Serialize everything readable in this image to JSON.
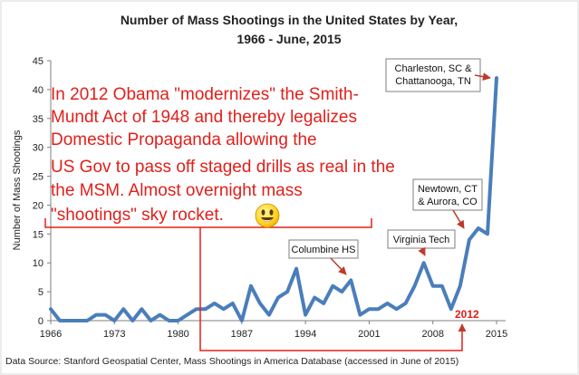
{
  "chart_data": {
    "type": "line",
    "title": [
      "Number of Mass Shootings in the United States by Year,",
      "1966 - June, 2015"
    ],
    "xlabel": "",
    "ylabel": "Number of Mass Shootings",
    "ylim": [
      0,
      45
    ],
    "xlim": [
      1966,
      2015
    ],
    "yticks": [
      0,
      5,
      10,
      15,
      20,
      25,
      30,
      35,
      40,
      45
    ],
    "xticks": [
      1966,
      1973,
      1980,
      1987,
      1994,
      2001,
      2008,
      2015
    ],
    "grid": false,
    "series": [
      {
        "color": "#4a7ebb",
        "x": [
          1966,
          1967,
          1968,
          1969,
          1970,
          1971,
          1972,
          1973,
          1974,
          1975,
          1976,
          1977,
          1978,
          1979,
          1980,
          1981,
          1982,
          1983,
          1984,
          1985,
          1986,
          1987,
          1988,
          1989,
          1990,
          1991,
          1992,
          1993,
          1994,
          1995,
          1996,
          1997,
          1998,
          1999,
          2000,
          2001,
          2002,
          2003,
          2004,
          2005,
          2006,
          2007,
          2008,
          2009,
          2010,
          2011,
          2012,
          2013,
          2014,
          2015
        ],
        "values": [
          2,
          0,
          0,
          0,
          0,
          1,
          1,
          0,
          2,
          0,
          2,
          0,
          1,
          0,
          0,
          1,
          2,
          2,
          3,
          2,
          3,
          0,
          6,
          3,
          1,
          4,
          5,
          9,
          1,
          4,
          3,
          6,
          5,
          7,
          1,
          2,
          2,
          3,
          2,
          3,
          6,
          10,
          6,
          6,
          2,
          6,
          14,
          16,
          15,
          42
        ]
      }
    ],
    "annotations": [
      {
        "id": "charleston",
        "lines": [
          "Charleston, SC &",
          "Chattanooga, TN"
        ],
        "x": 2015,
        "y": 42
      },
      {
        "id": "newtown",
        "lines": [
          "Newtown, CT",
          "& Aurora, CO"
        ],
        "x": 2012,
        "y": 14
      },
      {
        "id": "virginia",
        "lines": [
          "Virginia Tech"
        ],
        "x": 2007,
        "y": 10
      },
      {
        "id": "columbine",
        "lines": [
          "Columbine HS"
        ],
        "x": 1999,
        "y": 7
      }
    ],
    "source": "Data Source: Stanford Geospatial Center, Mass Shootings in America Database (accessed in June of 2015)"
  },
  "overlay": {
    "lines": [
      "In 2012 Obama \"modernizes\" the Smith-",
      "Mundt Act of 1948 and thereby legalizes",
      "Domestic Propaganda allowing the",
      "US Gov to pass off staged drills as real in the",
      "the MSM. Almost overnight mass",
      "\"shootings\" sky rocket."
    ],
    "year_label": "2012",
    "emoji_name": "smiley-face-icon",
    "color": "#e0201b"
  }
}
